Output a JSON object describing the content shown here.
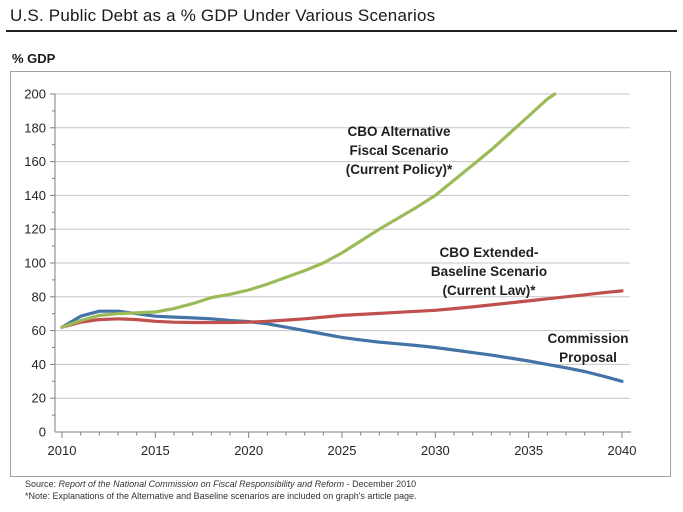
{
  "title": "U.S. Public Debt as a % GDP Under Various Scenarios",
  "y_axis_unit": "% GDP",
  "annotations": {
    "alternative": {
      "lines": [
        "CBO Alternative",
        "Fiscal Scenario",
        "(Current Policy)*"
      ]
    },
    "extended": {
      "lines": [
        "CBO Extended-",
        "Baseline Scenario",
        "(Current Law)*"
      ]
    },
    "commission": {
      "lines": [
        "Commission",
        "Proposal"
      ]
    }
  },
  "source": {
    "prefix": "Source: ",
    "citation": "Report of the National Commission on Fiscal Responsibility and Reform",
    "suffix": " - December 2010",
    "note": "*Note: Explanations of the Alternative and Baseline scenarios are included on graph's article page."
  },
  "colors": {
    "alternative": "#9BBB59",
    "extended": "#C0504D",
    "commission": "#4473A6",
    "gridline": "#c6c6c6",
    "axis": "#7f7f7f",
    "tick_label": "#262626"
  },
  "chart_data": {
    "type": "line",
    "title": "U.S. Public Debt as a % GDP Under Various Scenarios",
    "xlabel": "",
    "ylabel": "% GDP",
    "xlim": [
      2010,
      2040.5
    ],
    "ylim": [
      0,
      200
    ],
    "x_ticks": [
      2010,
      2015,
      2020,
      2025,
      2030,
      2035,
      2040
    ],
    "x_tick_step": 5,
    "x_minor_tick_step": 1,
    "y_tick_step": 20,
    "y_minor_tick_step": 10,
    "grid": "horizontal-only",
    "legend": "inline-annotations",
    "series": [
      {
        "name": "CBO Alternative Fiscal Scenario (Current Policy)*",
        "color": "#9BBB59",
        "x": [
          2010,
          2011,
          2012,
          2013,
          2014,
          2015,
          2016,
          2017,
          2018,
          2019,
          2020,
          2021,
          2022,
          2023,
          2024,
          2025,
          2026,
          2027,
          2028,
          2029,
          2030,
          2031,
          2032,
          2033,
          2034,
          2035,
          2036,
          2036.4
        ],
        "values": [
          62,
          66,
          69,
          70,
          70.5,
          71,
          73,
          76,
          79.5,
          81.5,
          84,
          87.5,
          91.5,
          95.5,
          100,
          106,
          113,
          120,
          126.5,
          133,
          140,
          149,
          158,
          167,
          177,
          187,
          197,
          200
        ]
      },
      {
        "name": "CBO Extended-Baseline Scenario (Current Law)*",
        "color": "#C0504D",
        "x": [
          2010,
          2011,
          2012,
          2013,
          2014,
          2015,
          2016,
          2017,
          2018,
          2019,
          2020,
          2021,
          2022,
          2023,
          2024,
          2025,
          2026,
          2027,
          2028,
          2029,
          2030,
          2031,
          2032,
          2033,
          2034,
          2035,
          2036,
          2037,
          2038,
          2039,
          2040
        ],
        "values": [
          62,
          65,
          66.5,
          67,
          66.5,
          65.5,
          65,
          64.8,
          64.8,
          64.8,
          65,
          65.5,
          66.2,
          67,
          68,
          69,
          69.6,
          70.2,
          70.8,
          71.4,
          72,
          73,
          74,
          75.2,
          76.4,
          77.6,
          78.8,
          80,
          81.2,
          82.4,
          83.5
        ]
      },
      {
        "name": "Commission Proposal",
        "color": "#4473A6",
        "x": [
          2010,
          2011,
          2012,
          2013,
          2014,
          2015,
          2016,
          2017,
          2018,
          2019,
          2020,
          2021,
          2022,
          2023,
          2024,
          2025,
          2026,
          2027,
          2028,
          2029,
          2030,
          2031,
          2032,
          2033,
          2034,
          2035,
          2036,
          2037,
          2038,
          2039,
          2040
        ],
        "values": [
          62,
          68.5,
          71.5,
          71.5,
          70,
          68.5,
          68,
          67.5,
          67,
          66,
          65.3,
          64,
          62,
          60,
          58,
          56,
          54.5,
          53.2,
          52.2,
          51.2,
          50,
          48.5,
          47,
          45.5,
          43.8,
          42,
          40,
          38,
          35.8,
          33,
          30
        ]
      }
    ]
  }
}
